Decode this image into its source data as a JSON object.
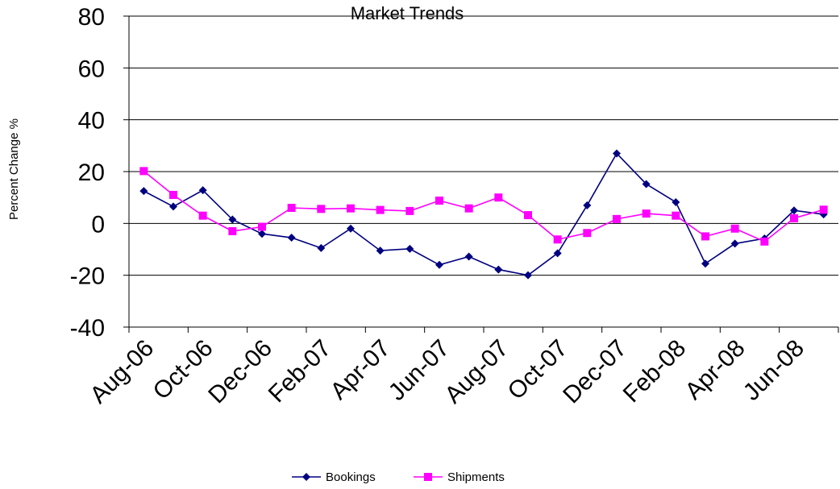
{
  "chart_data": {
    "type": "line",
    "title": "Market Trends",
    "ylabel": "Percent Change %",
    "xlabel": "",
    "ylim": [
      -40,
      80
    ],
    "yticks": [
      -40,
      -20,
      0,
      20,
      40,
      60,
      80
    ],
    "grid": "horizontal",
    "legend": "bottom",
    "categories": [
      "Aug-06",
      "Sep-06",
      "Oct-06",
      "Nov-06",
      "Dec-06",
      "Jan-07",
      "Feb-07",
      "Mar-07",
      "Apr-07",
      "May-07",
      "Jun-07",
      "Jul-07",
      "Aug-07",
      "Sep-07",
      "Oct-07",
      "Nov-07",
      "Dec-07",
      "Jan-08",
      "Feb-08",
      "Mar-08",
      "Apr-08",
      "May-08",
      "Jun-08",
      "Jul-08"
    ],
    "tick_labels": [
      "Aug-06",
      "Oct-06",
      "Dec-06",
      "Feb-07",
      "Apr-07",
      "Jun-07",
      "Aug-07",
      "Oct-07",
      "Dec-07",
      "Feb-08",
      "Apr-08",
      "Jun-08"
    ],
    "series": [
      {
        "name": "Bookings",
        "color": "#000080",
        "marker": "diamond",
        "values": [
          12.5,
          6.5,
          12.8,
          1.5,
          -4,
          -5.5,
          -9.5,
          -2,
          -10.5,
          -9.8,
          -16,
          -12.8,
          -17.8,
          -20,
          -11.5,
          7,
          27,
          15.2,
          8.2,
          -15.5,
          -7.8,
          -5.8,
          5,
          3.5
        ]
      },
      {
        "name": "Shipments",
        "color": "#FF00FF",
        "marker": "square",
        "values": [
          20.2,
          11,
          3,
          -3,
          -1.3,
          6,
          5.6,
          5.8,
          5.2,
          4.8,
          8.8,
          5.8,
          10,
          3.2,
          -6.2,
          -3.7,
          1.7,
          3.8,
          3,
          -5,
          -2,
          -7,
          2,
          5.3
        ]
      }
    ]
  }
}
